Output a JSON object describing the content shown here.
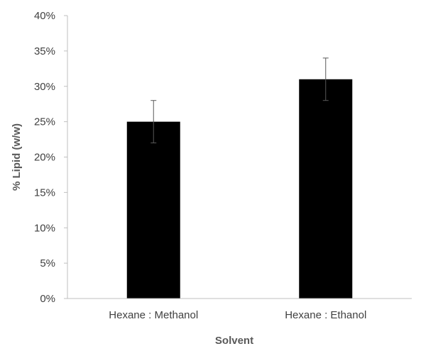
{
  "chart_data": {
    "type": "bar",
    "title": "",
    "xlabel": "Solvent",
    "ylabel": "% Lipid (w/w)",
    "categories": [
      "Hexane : Methanol",
      "Hexane : Ethanol"
    ],
    "series": [
      {
        "values": [
          0.25,
          0.31
        ],
        "error": [
          0.03,
          0.03
        ],
        "color": "#000000"
      }
    ],
    "ylim": [
      0,
      0.4
    ],
    "yticks": [
      0,
      0.05,
      0.1,
      0.15,
      0.2,
      0.25,
      0.3,
      0.35,
      0.4
    ],
    "ytick_labels": [
      "0%",
      "5%",
      "10%",
      "15%",
      "20%",
      "25%",
      "30%",
      "35%",
      "40%"
    ],
    "grid": false,
    "legend": "none"
  }
}
